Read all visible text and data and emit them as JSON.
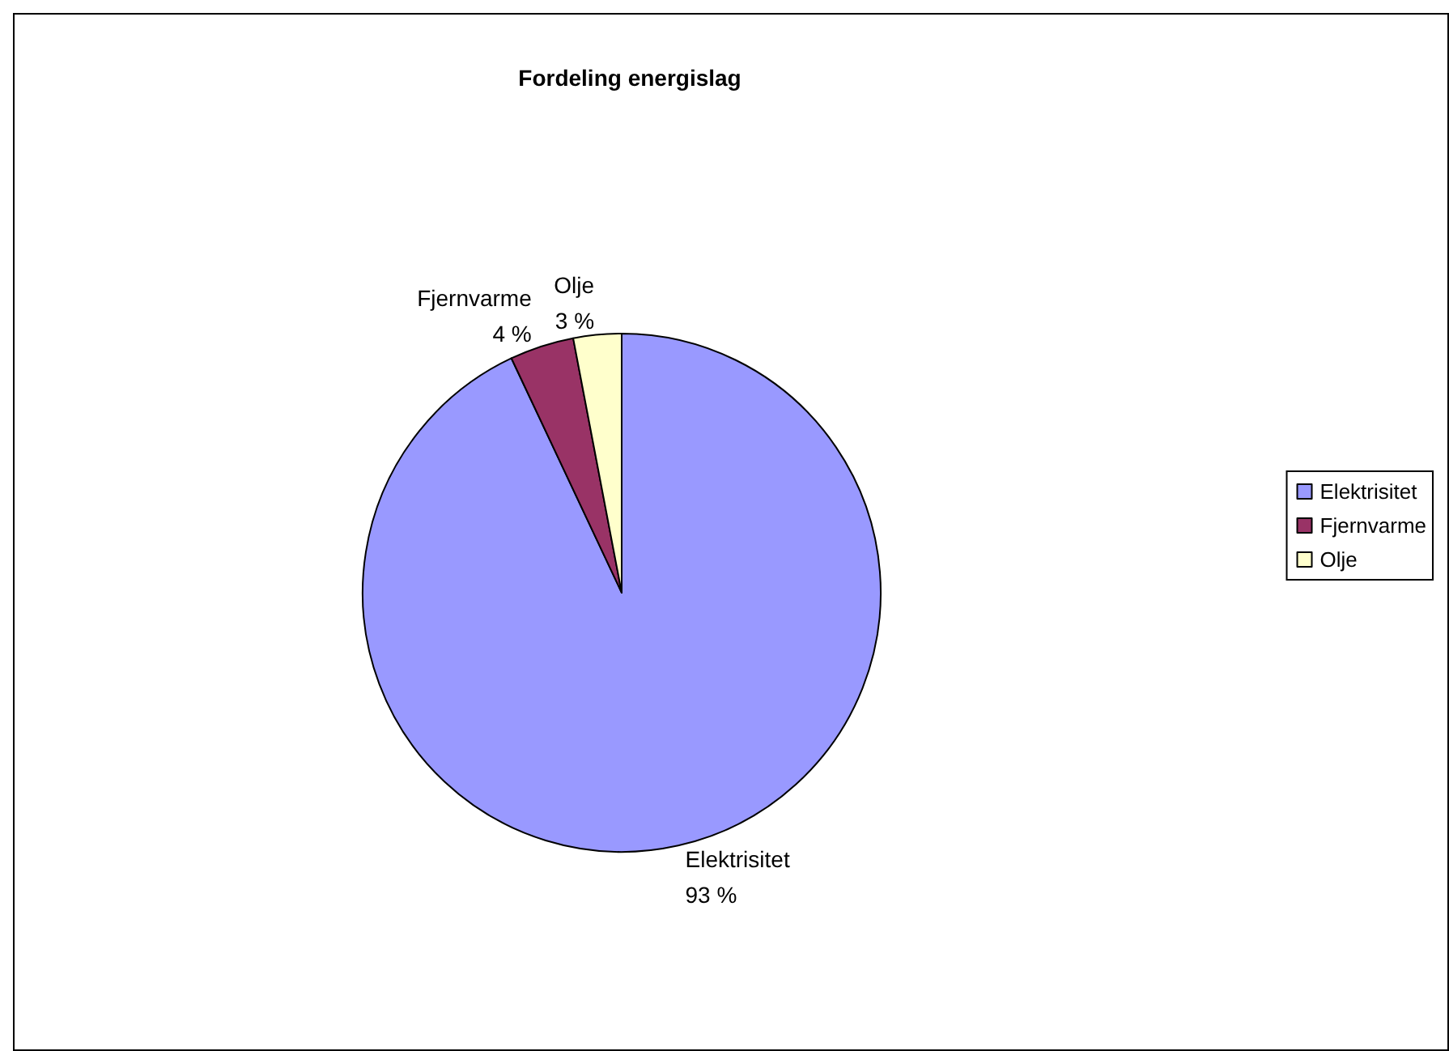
{
  "chart_data": {
    "type": "pie",
    "title": "Fordeling energislag",
    "categories": [
      "Elektrisitet",
      "Fjernvarme",
      "Olje"
    ],
    "values": [
      93,
      4,
      3
    ],
    "colors": [
      "#9999ff",
      "#993366",
      "#ffffcc"
    ],
    "value_labels": [
      "93 %",
      "4 %",
      "3 %"
    ],
    "legend": "right"
  }
}
